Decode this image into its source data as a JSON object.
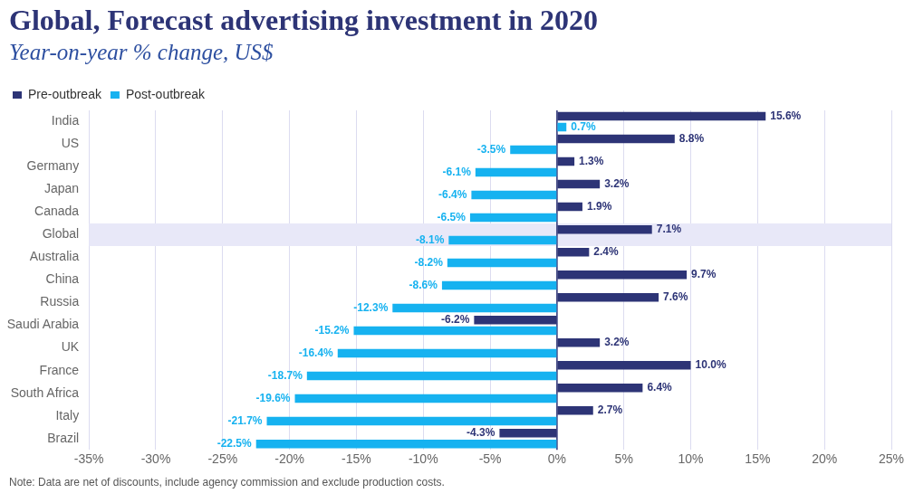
{
  "chart_data": {
    "type": "bar",
    "orientation": "horizontal",
    "title": "Global, Forecast advertising investment in 2020",
    "subtitle": "Year-on-year % change, US$",
    "categories": [
      "India",
      "US",
      "Germany",
      "Japan",
      "Canada",
      "Global",
      "Australia",
      "China",
      "Russia",
      "Saudi Arabia",
      "UK",
      "France",
      "South Africa",
      "Italy",
      "Brazil"
    ],
    "series": [
      {
        "name": "Pre-outbreak",
        "color": "#2d3476",
        "values": [
          15.6,
          8.8,
          1.3,
          3.2,
          1.9,
          7.1,
          2.4,
          9.7,
          7.6,
          -6.2,
          3.2,
          10.0,
          6.4,
          2.7,
          -4.3
        ],
        "value_labels": [
          "15.6%",
          "8.8%",
          "1.3%",
          "3.2%",
          "1.9%",
          "7.1%",
          "2.4%",
          "9.7%",
          "7.6%",
          "-6.2%",
          "3.2%",
          "10.0%",
          "6.4%",
          "2.7%",
          "-4.3%"
        ]
      },
      {
        "name": "Post-outbreak",
        "color": "#16b2f0",
        "values": [
          0.7,
          -3.5,
          -6.1,
          -6.4,
          -6.5,
          -8.1,
          -8.2,
          -8.6,
          -12.3,
          -15.2,
          -16.4,
          -18.7,
          -19.6,
          -21.7,
          -22.5
        ],
        "value_labels": [
          "0.7%",
          "-3.5%",
          "-6.1%",
          "-6.4%",
          "-6.5%",
          "-8.1%",
          "-8.2%",
          "-8.6%",
          "-12.3%",
          "-15.2%",
          "-16.4%",
          "-18.7%",
          "-19.6%",
          "-21.7%",
          "-22.5%"
        ]
      }
    ],
    "xlim": [
      -35,
      25
    ],
    "xticks": [
      {
        "value": -35,
        "label": "-35%"
      },
      {
        "value": -30,
        "label": "-30%"
      },
      {
        "value": -25,
        "label": "-25%"
      },
      {
        "value": -20,
        "label": "-20%"
      },
      {
        "value": -15,
        "label": "-15%"
      },
      {
        "value": -10,
        "label": "-10%"
      },
      {
        "value": -5,
        "label": "-5%"
      },
      {
        "value": 0,
        "label": "0%"
      },
      {
        "value": 5,
        "label": "5%"
      },
      {
        "value": 10,
        "label": "10%"
      },
      {
        "value": 15,
        "label": "15%"
      },
      {
        "value": 20,
        "label": "20%"
      },
      {
        "value": 25,
        "label": "25%"
      }
    ],
    "bands": [
      {
        "axis": "y",
        "from": "Global",
        "to": "Global",
        "color": "#e8e8f8"
      }
    ],
    "ref_lines": [
      {
        "axis": "x",
        "value": 0,
        "color": "#2d3476"
      }
    ],
    "grid": "x",
    "legend": "top left",
    "annotations": [
      "Note: Data are net of discounts, include agency commission and exclude production costs."
    ]
  }
}
